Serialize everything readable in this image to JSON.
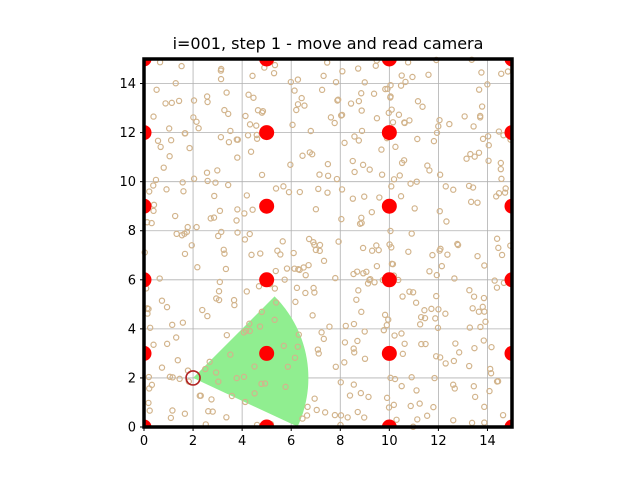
{
  "chart_data": {
    "type": "scatter",
    "title": "i=001, step 1 - move and read camera",
    "xlabel": "",
    "ylabel": "",
    "xlim": [
      0,
      15
    ],
    "ylim": [
      0,
      15
    ],
    "x_ticks": [
      0,
      2,
      4,
      6,
      8,
      10,
      12,
      14
    ],
    "y_ticks": [
      0,
      2,
      4,
      6,
      8,
      10,
      12,
      14
    ],
    "x_tick_labels": [
      "0",
      "2",
      "4",
      "6",
      "8",
      "10",
      "12",
      "14"
    ],
    "y_tick_labels": [
      "0",
      "2",
      "4",
      "6",
      "8",
      "10",
      "12",
      "14"
    ],
    "grid": true,
    "landmarks": {
      "marker": "filled circle",
      "color": "#ff0000",
      "points": [
        [
          0,
          0
        ],
        [
          5,
          0
        ],
        [
          10,
          0
        ],
        [
          15,
          0
        ],
        [
          0,
          3
        ],
        [
          5,
          3
        ],
        [
          10,
          3
        ],
        [
          15,
          3
        ],
        [
          0,
          6
        ],
        [
          5,
          6
        ],
        [
          10,
          6
        ],
        [
          15,
          6
        ],
        [
          0,
          9
        ],
        [
          5,
          9
        ],
        [
          10,
          9
        ],
        [
          15,
          9
        ],
        [
          0,
          12
        ],
        [
          5,
          12
        ],
        [
          10,
          12
        ],
        [
          15,
          12
        ],
        [
          0,
          15
        ],
        [
          5,
          15
        ],
        [
          10,
          15
        ],
        [
          15,
          15
        ]
      ]
    },
    "particles": {
      "marker": "hollow circle",
      "color": "#d2b48c",
      "count": 500,
      "distribution": "uniform over [0,15] x [0,15]"
    },
    "robot": {
      "x": 2.0,
      "y": 2.0,
      "marker": "hollow circle",
      "color": "#b22222"
    },
    "camera_view": {
      "shape": "wedge",
      "color": "#90ee90",
      "apex": [
        2.0,
        2.0
      ],
      "radius_approx": 4.7,
      "heading_deg": 0,
      "angle_range_deg": [
        -25,
        45
      ]
    }
  }
}
